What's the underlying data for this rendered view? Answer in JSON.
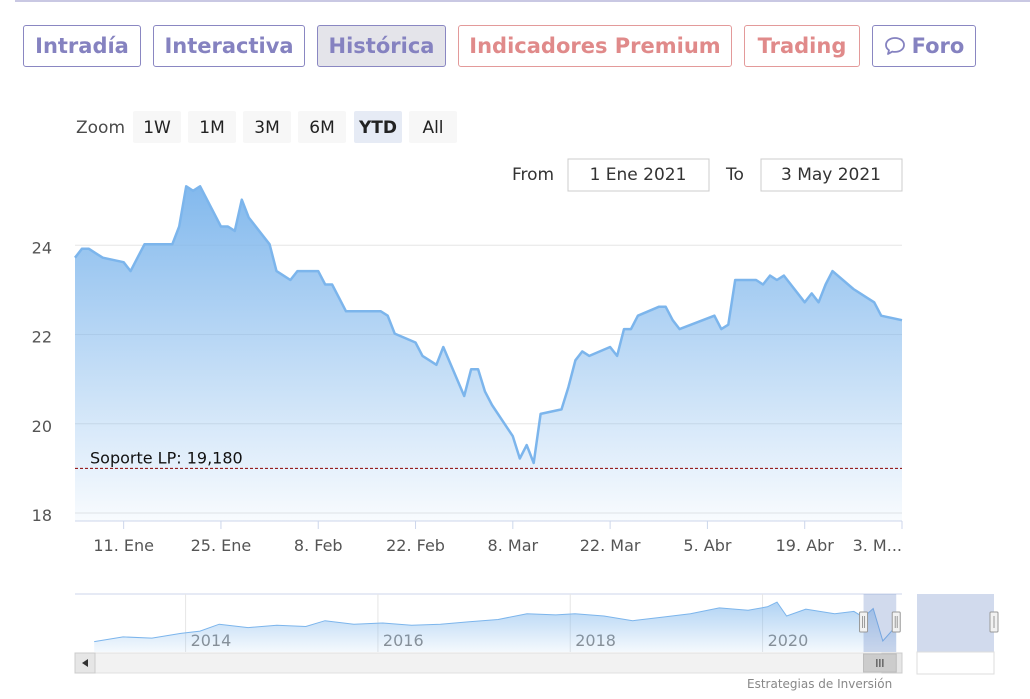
{
  "tabs": [
    {
      "label": "Intradía",
      "style": "purple"
    },
    {
      "label": "Interactiva",
      "style": "purple"
    },
    {
      "label": "Histórica",
      "style": "active"
    },
    {
      "label": "Indicadores Premium",
      "style": "red"
    },
    {
      "label": "Trading",
      "style": "red"
    },
    {
      "label": "Foro",
      "style": "purple",
      "icon": "chat-bubble-icon"
    }
  ],
  "zoom": {
    "label": "Zoom",
    "buttons": [
      "1W",
      "1M",
      "3M",
      "6M",
      "YTD",
      "All"
    ],
    "selected": "YTD"
  },
  "range": {
    "from_label": "From",
    "from_value": "1 Ene 2021",
    "to_label": "To",
    "to_value": "3 May 2021"
  },
  "credit": "Estrategias de Inversión",
  "colors": {
    "line": "#7cb5ec",
    "support": "#8b0000",
    "purple": "#8582c0",
    "red": "#e08a8a"
  },
  "chart_data": {
    "type": "area",
    "ylim": [
      18,
      26
    ],
    "yticks": [
      18,
      20,
      22,
      24
    ],
    "xlim": [
      "2021-01-04",
      "2021-05-03"
    ],
    "xticks": [
      {
        "date": "2021-01-11",
        "label": "11. Ene"
      },
      {
        "date": "2021-01-25",
        "label": "25. Ene"
      },
      {
        "date": "2021-02-08",
        "label": "8. Feb"
      },
      {
        "date": "2021-02-22",
        "label": "22. Feb"
      },
      {
        "date": "2021-03-08",
        "label": "8. Mar"
      },
      {
        "date": "2021-03-22",
        "label": "22. Mar"
      },
      {
        "date": "2021-04-05",
        "label": "5. Abr"
      },
      {
        "date": "2021-04-19",
        "label": "19. Abr"
      },
      {
        "date": "2021-05-03",
        "label": "3. M..."
      }
    ],
    "series": [
      {
        "values": [
          [
            "2021-01-04",
            23.9
          ],
          [
            "2021-01-05",
            24.1
          ],
          [
            "2021-01-06",
            24.1
          ],
          [
            "2021-01-07",
            24.0
          ],
          [
            "2021-01-08",
            23.9
          ],
          [
            "2021-01-11",
            23.8
          ],
          [
            "2021-01-12",
            23.6
          ],
          [
            "2021-01-13",
            23.9
          ],
          [
            "2021-01-14",
            24.2
          ],
          [
            "2021-01-15",
            24.2
          ],
          [
            "2021-01-18",
            24.2
          ],
          [
            "2021-01-19",
            24.6
          ],
          [
            "2021-01-20",
            25.5
          ],
          [
            "2021-01-21",
            25.4
          ],
          [
            "2021-01-22",
            25.5
          ],
          [
            "2021-01-25",
            24.6
          ],
          [
            "2021-01-26",
            24.6
          ],
          [
            "2021-01-27",
            24.5
          ],
          [
            "2021-01-28",
            25.2
          ],
          [
            "2021-01-29",
            24.8
          ],
          [
            "2021-02-01",
            24.2
          ],
          [
            "2021-02-02",
            23.6
          ],
          [
            "2021-02-03",
            23.5
          ],
          [
            "2021-02-04",
            23.4
          ],
          [
            "2021-02-05",
            23.6
          ],
          [
            "2021-02-08",
            23.6
          ],
          [
            "2021-02-09",
            23.3
          ],
          [
            "2021-02-10",
            23.3
          ],
          [
            "2021-02-11",
            23.0
          ],
          [
            "2021-02-12",
            22.7
          ],
          [
            "2021-02-15",
            22.7
          ],
          [
            "2021-02-16",
            22.7
          ],
          [
            "2021-02-17",
            22.7
          ],
          [
            "2021-02-18",
            22.6
          ],
          [
            "2021-02-19",
            22.2
          ],
          [
            "2021-02-22",
            22.0
          ],
          [
            "2021-02-23",
            21.7
          ],
          [
            "2021-02-24",
            21.6
          ],
          [
            "2021-02-25",
            21.5
          ],
          [
            "2021-02-26",
            21.9
          ],
          [
            "2021-03-01",
            20.8
          ],
          [
            "2021-03-02",
            21.4
          ],
          [
            "2021-03-03",
            21.4
          ],
          [
            "2021-03-04",
            20.9
          ],
          [
            "2021-03-05",
            20.6
          ],
          [
            "2021-03-08",
            19.9
          ],
          [
            "2021-03-09",
            19.4
          ],
          [
            "2021-03-10",
            19.7
          ],
          [
            "2021-03-11",
            19.3
          ],
          [
            "2021-03-12",
            20.4
          ],
          [
            "2021-03-15",
            20.5
          ],
          [
            "2021-03-16",
            21.0
          ],
          [
            "2021-03-17",
            21.6
          ],
          [
            "2021-03-18",
            21.8
          ],
          [
            "2021-03-19",
            21.7
          ],
          [
            "2021-03-22",
            21.9
          ],
          [
            "2021-03-23",
            21.7
          ],
          [
            "2021-03-24",
            22.3
          ],
          [
            "2021-03-25",
            22.3
          ],
          [
            "2021-03-26",
            22.6
          ],
          [
            "2021-03-29",
            22.8
          ],
          [
            "2021-03-30",
            22.8
          ],
          [
            "2021-03-31",
            22.5
          ],
          [
            "2021-04-01",
            22.3
          ],
          [
            "2021-04-06",
            22.6
          ],
          [
            "2021-04-07",
            22.3
          ],
          [
            "2021-04-08",
            22.4
          ],
          [
            "2021-04-09",
            23.4
          ],
          [
            "2021-04-12",
            23.4
          ],
          [
            "2021-04-13",
            23.3
          ],
          [
            "2021-04-14",
            23.5
          ],
          [
            "2021-04-15",
            23.4
          ],
          [
            "2021-04-16",
            23.5
          ],
          [
            "2021-04-19",
            22.9
          ],
          [
            "2021-04-20",
            23.1
          ],
          [
            "2021-04-21",
            22.9
          ],
          [
            "2021-04-22",
            23.3
          ],
          [
            "2021-04-23",
            23.6
          ],
          [
            "2021-04-26",
            23.2
          ],
          [
            "2021-04-27",
            23.1
          ],
          [
            "2021-04-28",
            23.0
          ],
          [
            "2021-04-29",
            22.9
          ],
          [
            "2021-04-30",
            22.6
          ],
          [
            "2021-05-03",
            22.5
          ]
        ]
      }
    ],
    "support": {
      "label": "Soporte LP: 19,180",
      "value": 19.18,
      "style": "dashed"
    },
    "navigator": {
      "years": [
        "2014",
        "2016",
        "2018",
        "2020"
      ],
      "year_values": [
        2014,
        2016,
        2018,
        2020
      ],
      "xlim": [
        2012.8,
        2021.4
      ],
      "selected": [
        2021.0,
        2021.34
      ],
      "values": [
        [
          2013.0,
          19.8
        ],
        [
          2013.3,
          20.6
        ],
        [
          2013.6,
          20.4
        ],
        [
          2013.9,
          21.2
        ],
        [
          2014.1,
          21.6
        ],
        [
          2014.3,
          22.8
        ],
        [
          2014.6,
          22.2
        ],
        [
          2014.9,
          22.6
        ],
        [
          2015.2,
          22.4
        ],
        [
          2015.4,
          23.4
        ],
        [
          2015.7,
          22.8
        ],
        [
          2016.0,
          23.0
        ],
        [
          2016.3,
          22.6
        ],
        [
          2016.6,
          22.8
        ],
        [
          2016.9,
          23.2
        ],
        [
          2017.2,
          23.6
        ],
        [
          2017.5,
          24.6
        ],
        [
          2017.8,
          24.4
        ],
        [
          2018.0,
          24.6
        ],
        [
          2018.3,
          24.2
        ],
        [
          2018.6,
          23.4
        ],
        [
          2018.9,
          24.0
        ],
        [
          2019.2,
          24.6
        ],
        [
          2019.5,
          25.6
        ],
        [
          2019.8,
          25.2
        ],
        [
          2020.0,
          25.8
        ],
        [
          2020.1,
          26.6
        ],
        [
          2020.2,
          24.2
        ],
        [
          2020.4,
          25.4
        ],
        [
          2020.7,
          24.6
        ],
        [
          2020.9,
          25.0
        ],
        [
          2021.0,
          24.0
        ],
        [
          2021.1,
          25.5
        ],
        [
          2021.2,
          19.9
        ],
        [
          2021.34,
          22.5
        ]
      ],
      "ylim": [
        18,
        28
      ]
    }
  }
}
